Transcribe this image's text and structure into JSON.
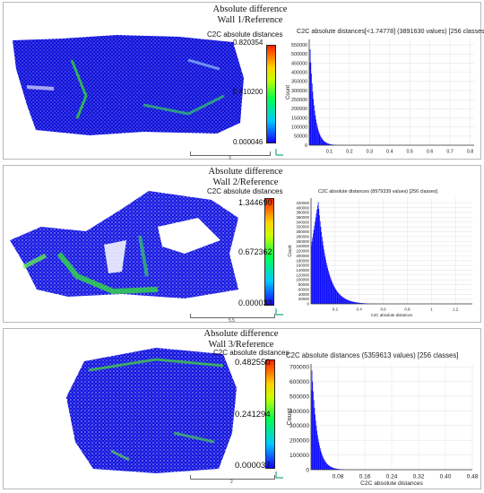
{
  "panels": [
    {
      "title1": "Absolute difference",
      "title2": "Wall 1/Reference",
      "colorbar": {
        "title": "C2C absolute distances",
        "max": "0.820354",
        "mid": "0.410200",
        "min": "0.000046"
      },
      "scale_label": "3"
    },
    {
      "title1": "Absolute difference",
      "title2": "Wall 2/Reference",
      "colorbar": {
        "title": "C2C absolute distances",
        "max": "1.344690",
        "mid": "0.672362",
        "min": "0.000033"
      },
      "scale_label": "5.5"
    },
    {
      "title1": "Absolute difference",
      "title2": "Wall 3/Reference",
      "colorbar": {
        "title": "C2C absolute distances",
        "max": "0.482550",
        "mid": "0.241294",
        "min": "0.000037"
      },
      "scale_label": "2"
    }
  ],
  "colors": {
    "bar_blue": "#0000ff",
    "bar_green": "#00c864",
    "grid": "#e6e6e6"
  },
  "chart_data": [
    {
      "type": "bar",
      "title": "C2C absolute distances[<1.74778] (3891630 values)  [256 classes]",
      "xlabel": "",
      "ylabel": "Count",
      "xlim": [
        0,
        0.82
      ],
      "ylim": [
        0,
        580000
      ],
      "xticks": [
        "0.1",
        "0.2",
        "0.3",
        "0.4",
        "0.5",
        "0.6",
        "0.7",
        "0.8"
      ],
      "yticks": [
        "0",
        "50000",
        "100000",
        "150000",
        "200000",
        "250000",
        "300000",
        "350000",
        "400000",
        "450000",
        "500000",
        "550000"
      ],
      "peak_x": 0.003,
      "peak_count": 570000,
      "decay": 0.022
    },
    {
      "type": "bar",
      "title": "C2C absolute distances (8979339 values)  [256 classes]",
      "xlabel": "C2C absolute distances",
      "ylabel": "Count",
      "xlim": [
        0,
        1.34
      ],
      "ylim": [
        0,
        440000
      ],
      "xticks": [
        "0.2",
        "0.4",
        "0.6",
        "0.8",
        "1",
        "1.2"
      ],
      "yticks": [
        "0",
        "20000",
        "40000",
        "60000",
        "80000",
        "100000",
        "120000",
        "140000",
        "160000",
        "180000",
        "200000",
        "220000",
        "240000",
        "260000",
        "280000",
        "300000",
        "320000",
        "340000",
        "360000",
        "380000",
        "400000",
        "420000"
      ],
      "peak_x": 0.06,
      "peak_count": 425000,
      "decay": 0.075
    },
    {
      "type": "bar",
      "title": "C2C absolute distances (5359613 values)  [256 classes]",
      "xlabel": "C2C absolute distances",
      "ylabel": "Count",
      "xlim": [
        0,
        0.48
      ],
      "ylim": [
        0,
        720000
      ],
      "xticks": [
        "0.08",
        "0.16",
        "0.24",
        "0.32",
        "0.40",
        "0.48"
      ],
      "yticks": [
        "0",
        "100000",
        "200000",
        "300000",
        "400000",
        "500000",
        "600000",
        "700000"
      ],
      "peak_x": 0.002,
      "peak_count": 710000,
      "decay": 0.016
    }
  ]
}
